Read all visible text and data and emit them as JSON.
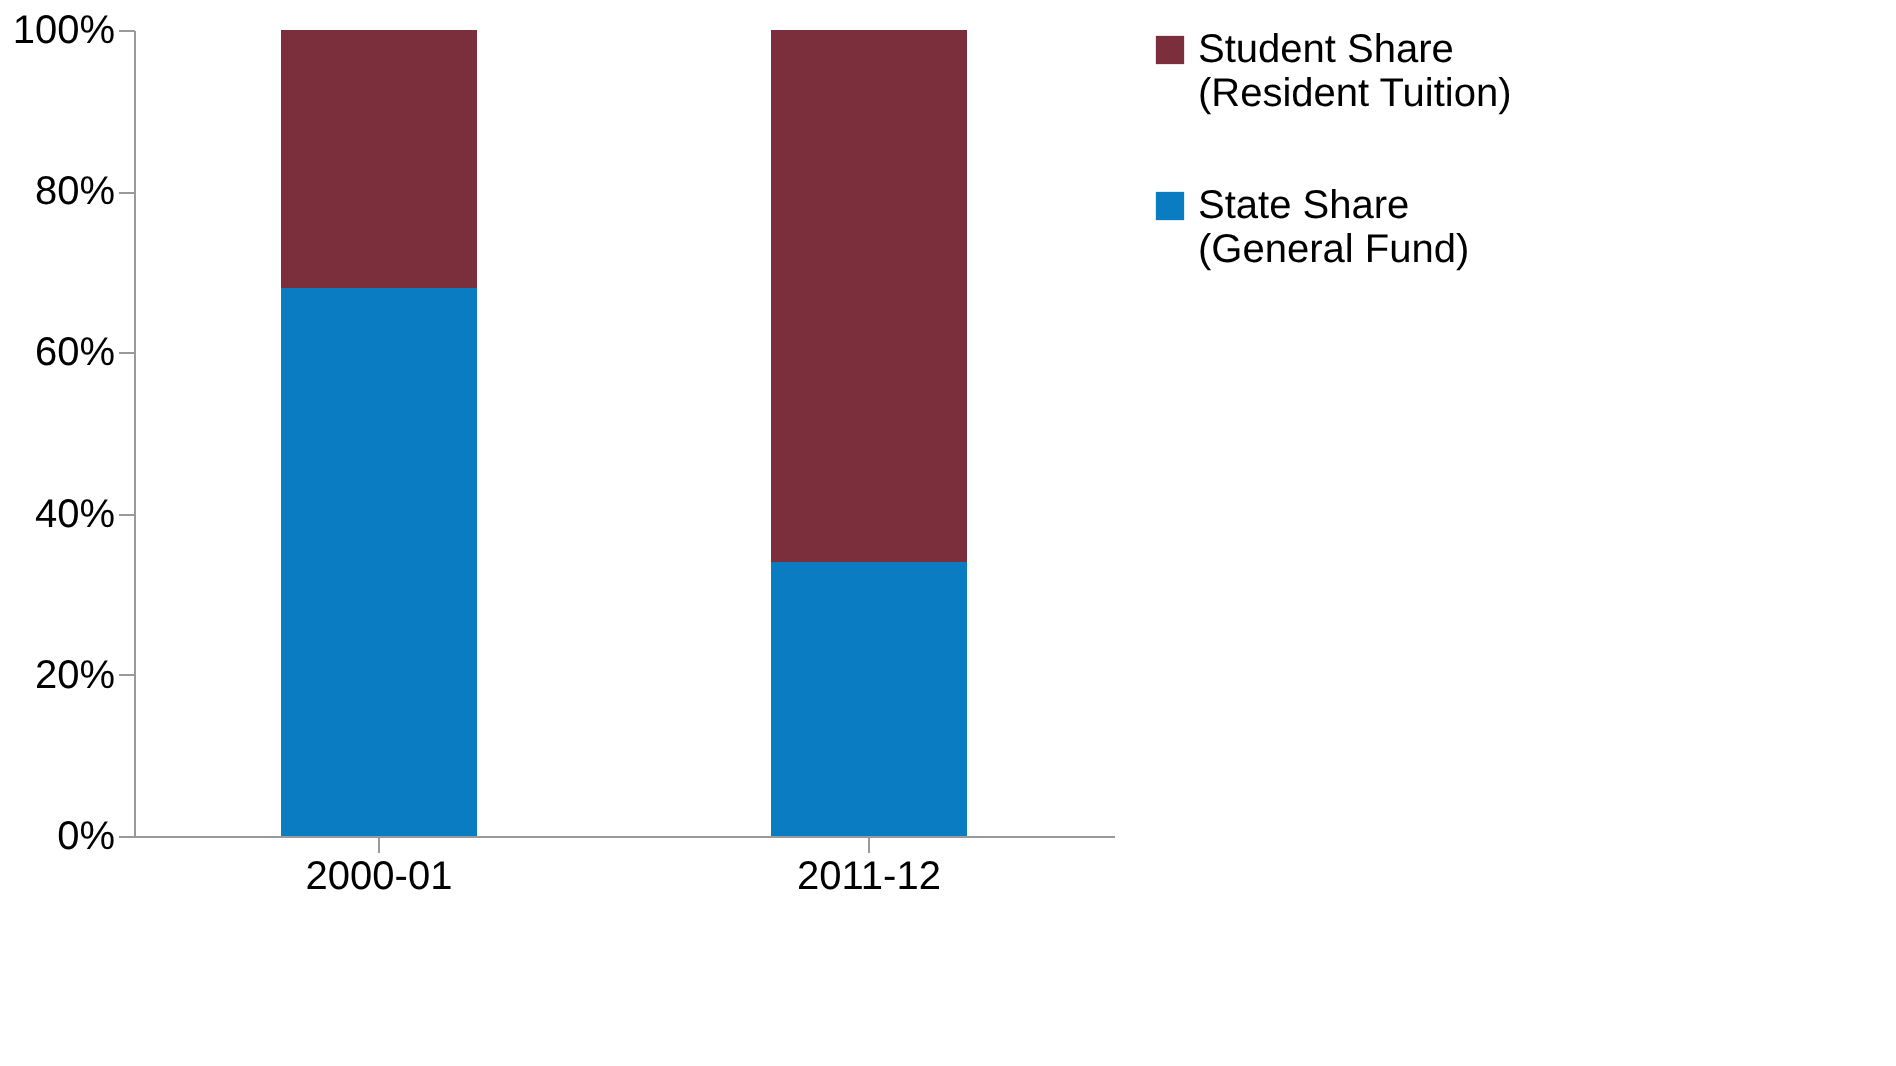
{
  "chart_data": {
    "type": "bar",
    "stacked": true,
    "categories": [
      "2000-01",
      "2011-12"
    ],
    "series": [
      {
        "name": "State Share (General Fund)",
        "color": "#0a7dc2",
        "values": [
          68,
          34
        ]
      },
      {
        "name": "Student Share (Resident Tuition)",
        "color": "#7b2f3c",
        "values": [
          32,
          66
        ]
      }
    ],
    "ylim": [
      0,
      100
    ],
    "yticks": [
      {
        "value": 0,
        "label": "0%"
      },
      {
        "value": 20,
        "label": "20%"
      },
      {
        "value": 40,
        "label": "40%"
      },
      {
        "value": 60,
        "label": "60%"
      },
      {
        "value": 80,
        "label": "80%"
      },
      {
        "value": 100,
        "label": "100%"
      }
    ],
    "grid": false,
    "legend": "right"
  }
}
